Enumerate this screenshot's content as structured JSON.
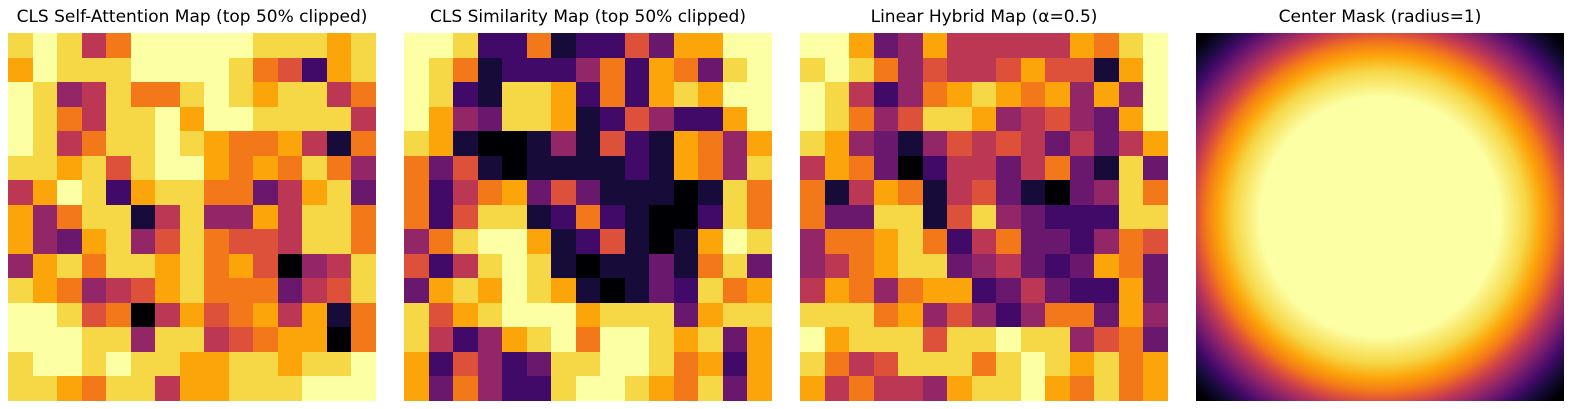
{
  "figure": {
    "background": "#ffffff",
    "title_color": "#000000"
  },
  "palette": {
    "name": "inferno",
    "levels": [
      "#000004",
      "#160b39",
      "#420a68",
      "#6a176e",
      "#932667",
      "#bc3754",
      "#dd513a",
      "#f37819",
      "#fca50a",
      "#f6d746",
      "#fcffa4"
    ]
  },
  "chart_data": [
    {
      "type": "heatmap",
      "title": "CLS Self-Attention Map (top 50% clipped)",
      "grid_size": "15x15",
      "colormap": "inferno",
      "value_encoding": "hex digit per cell: 0=min (black) ... a=max (pale yellow)",
      "rows": [
        "9a957aaaaa99989",
        "8a999aaaa976289",
        "a9459779a989957",
        "a97599a8aa99995",
        "a95799a98778517",
        "998969aa8787974",
        "58a928997735893",
        "847991594485997",
        "843894697665997",
        "489799897860459",
        "987456897773569",
        "aa9670586785817",
        "aaa994995678807",
        "9aa9a998899899a",
        "998799588999aaa"
      ]
    },
    {
      "type": "heatmap",
      "title": "CLS Similarity Map (top 50% clipped)",
      "grid_size": "15x15",
      "colormap": "inferno",
      "value_encoding": "hex digit per cell: 0=min (black) ... a=max (pale yellow)",
      "rows": [
        "aa92271226388aa",
        "a9712224728739a",
        "a921998272898aa",
        "a8439981264228a",
        "981001416218748",
        "736101111218749",
        "725783631110197",
        "726991272100297",
        "479aa81261018a9",
        "6259a9101131793",
        "3898a9810132978",
        "9689aaa89993899",
        "952489a7aa98938",
        "82642399aa97828",
        "8374229aa987938"
      ]
    },
    {
      "type": "heatmap",
      "title": "Linear Hybrid Map (α=0.5)",
      "alpha": 0.5,
      "grid_size": "15x15",
      "colormap": "inferno",
      "value_encoding": "hex digit per cell: 0=min (black) ... a=max (pale yellow)",
      "rows": [
        "aa834855555879a",
        "9a974655686618a",
        "a9524789878484a",
        "a9746998456438a",
        "984314656535358",
        "587302553573193",
        "715871563103497",
        "733991694322299",
        "477897257332476",
        "457899345323873",
        "587478823532283",
        "999784642477384",
        "a8999699a994673",
        "975699979a98978",
        "857554899a87978"
      ]
    },
    {
      "type": "radial_mask",
      "title": "Center Mask (radius=1)",
      "radius": 1,
      "colormap": "inferno",
      "description": "smooth radial falloff: max (pale yellow) at center, min (black) at corners",
      "gradient_stops": [
        {
          "pos": 0,
          "color": "#fcffa4"
        },
        {
          "pos": 46,
          "color": "#fcffa4"
        },
        {
          "pos": 56,
          "color": "#f6d746"
        },
        {
          "pos": 62,
          "color": "#fca50a"
        },
        {
          "pos": 67,
          "color": "#f37819"
        },
        {
          "pos": 70.5,
          "color": "#dd513a"
        },
        {
          "pos": 74,
          "color": "#bc3754"
        },
        {
          "pos": 78,
          "color": "#932667"
        },
        {
          "pos": 82,
          "color": "#6a176e"
        },
        {
          "pos": 86,
          "color": "#420a68"
        },
        {
          "pos": 91,
          "color": "#160b39"
        },
        {
          "pos": 97,
          "color": "#000004"
        },
        {
          "pos": 100,
          "color": "#000004"
        }
      ]
    }
  ]
}
